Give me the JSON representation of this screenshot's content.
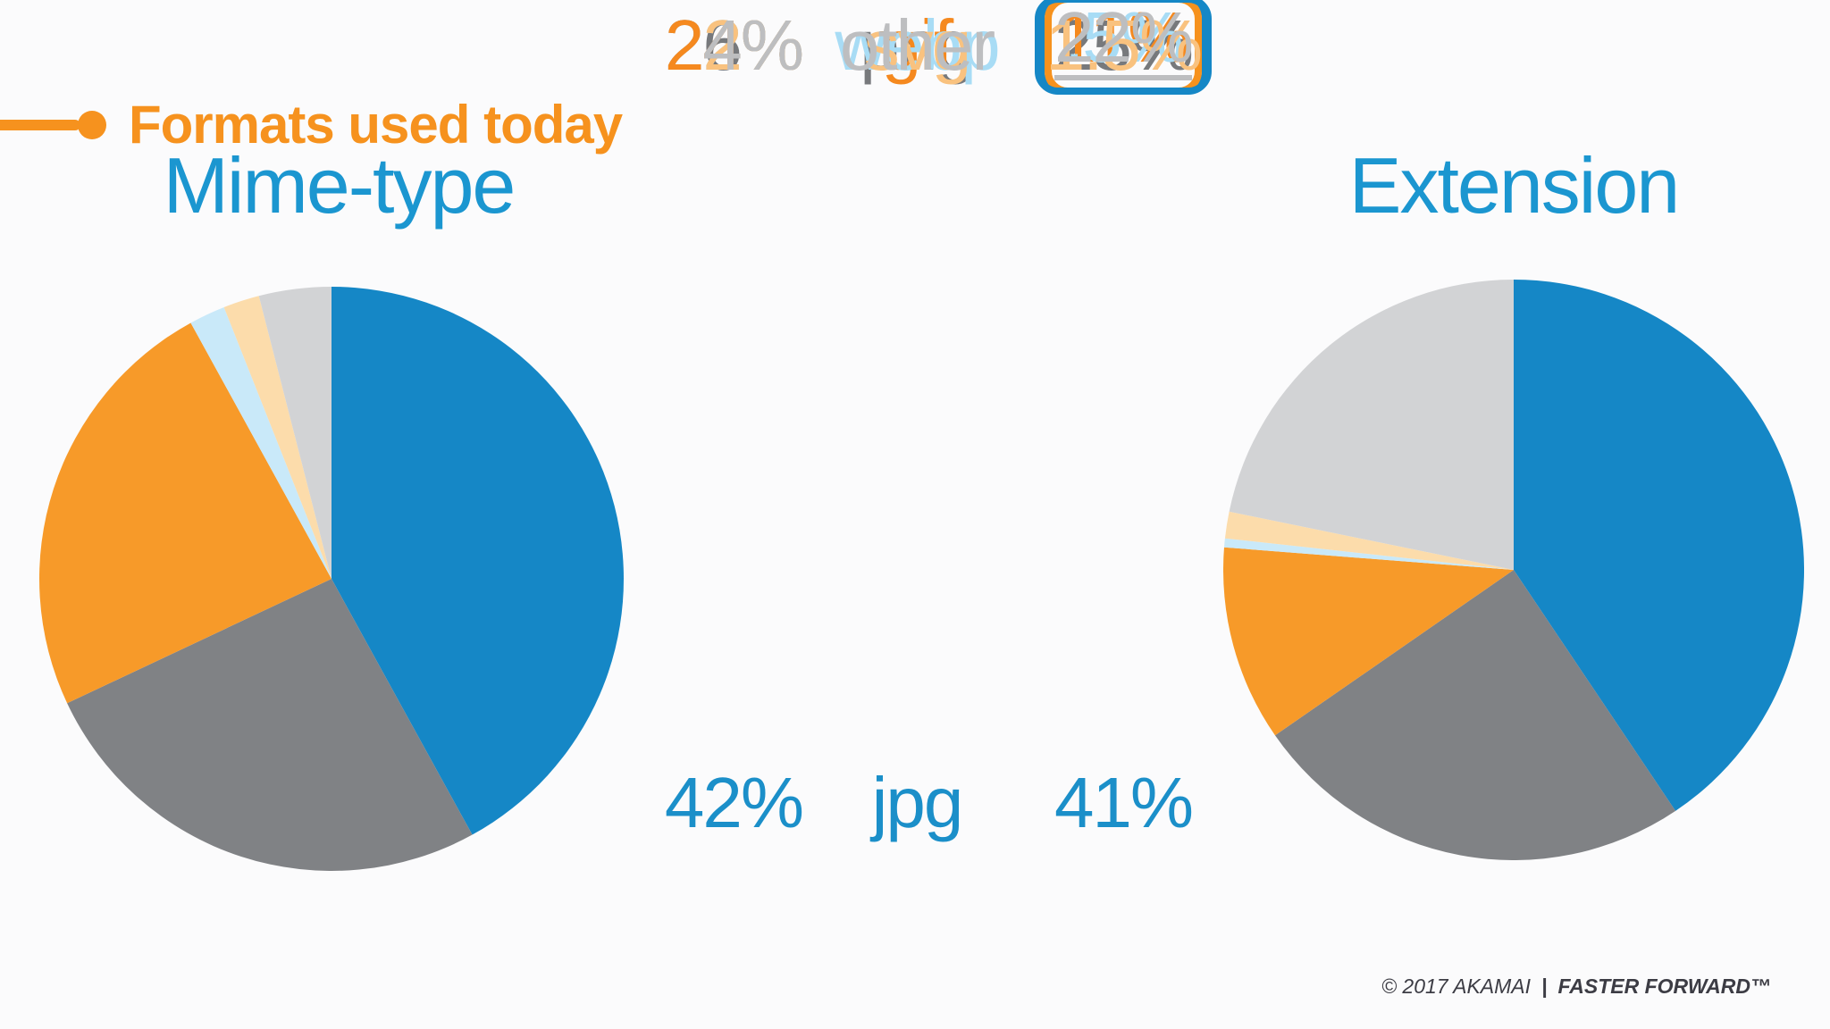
{
  "slide": {
    "kicker": "Formats used today",
    "left_heading": "Mime-type",
    "right_heading": "Extension",
    "footer": {
      "copyright": "© 2017 AKAMAI",
      "separator": "|",
      "tagline": "FASTER FORWARD™"
    }
  },
  "colors": {
    "accent_orange": "#f6921e",
    "accent_blue": "#1587c6",
    "heading_blue": "#1b96d0",
    "background": "#fbfbfc",
    "footer_text": "#3c3c44",
    "pie_slices": {
      "jpg": "#1587c6",
      "png": "#808285",
      "gif": "#f79a29",
      "webp": "#c9e9f9",
      "svg": "#fcdcab",
      "other": "#d2d3d5"
    }
  },
  "legend": {
    "rows": [
      {
        "mime": "42%",
        "label": "jpg",
        "ext": "41%",
        "color": "#1b8fc9",
        "highlight": null
      },
      {
        "mime": "26%",
        "label": "png",
        "ext": "25%",
        "color": "#77797c",
        "highlight": null
      },
      {
        "mime": "24%",
        "label": "gif",
        "ext": "11%",
        "color": "#f5891f",
        "highlight": "blue-box-underline"
      },
      {
        "mime": "2%",
        "label": "webp",
        "ext": ".5%",
        "color": "#a8dcf5",
        "highlight": "orange-box-underline"
      },
      {
        "mime": "2%",
        "label": "svg",
        "ext": "1.5%",
        "color": "#f9c27f",
        "highlight": null
      },
      {
        "mime": "4%",
        "label": "other",
        "ext": "22%",
        "color": "#bdbec0",
        "highlight": "blue-box-underline"
      }
    ]
  },
  "chart_data": [
    {
      "type": "pie",
      "title": "Mime-type",
      "categories": [
        "jpg",
        "png",
        "gif",
        "webp",
        "svg",
        "other"
      ],
      "values": [
        42,
        26,
        24,
        2,
        2,
        4
      ],
      "unit": "percent",
      "colors": [
        "#1587c6",
        "#808285",
        "#f79a29",
        "#c9e9f9",
        "#fcdcab",
        "#d2d3d5"
      ],
      "start_angle": "12-oclock",
      "direction": "clockwise",
      "legend_position": "center-column"
    },
    {
      "type": "pie",
      "title": "Extension",
      "categories": [
        "jpg",
        "png",
        "gif",
        "webp",
        "svg",
        "other"
      ],
      "values": [
        41,
        25,
        11,
        0.5,
        1.5,
        22
      ],
      "unit": "percent",
      "colors": [
        "#1587c6",
        "#808285",
        "#f79a29",
        "#c9e9f9",
        "#fcdcab",
        "#d2d3d5"
      ],
      "start_angle": "12-oclock",
      "direction": "clockwise",
      "legend_position": "center-column"
    }
  ]
}
